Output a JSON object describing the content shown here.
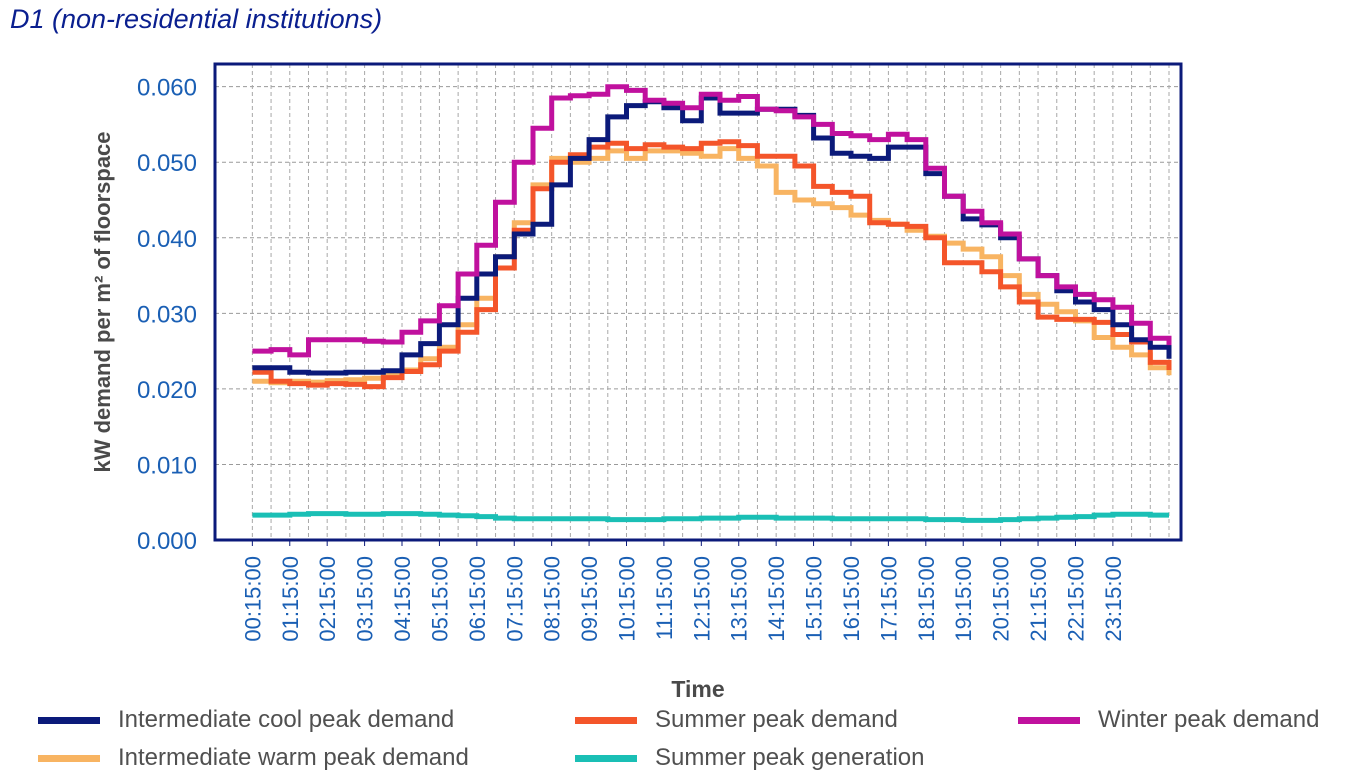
{
  "title": "D1 (non-residential institutions)",
  "chart_data": {
    "type": "line",
    "step": true,
    "xlabel": "Time",
    "ylabel": "kW demand per m² of floorspace",
    "ylim": [
      0,
      0.063
    ],
    "yticks": [
      "0.000",
      "0.010",
      "0.020",
      "0.030",
      "0.040",
      "0.050",
      "0.060"
    ],
    "ytick_values": [
      0,
      0.01,
      0.02,
      0.03,
      0.04,
      0.05,
      0.06
    ],
    "xtick_labels": [
      "00:15:00",
      "01:15:00",
      "02:15:00",
      "03:15:00",
      "04:15:00",
      "05:15:00",
      "06:15:00",
      "07:15:00",
      "08:15:00",
      "09:15:00",
      "10:15:00",
      "11:15:00",
      "12:15:00",
      "13:15:00",
      "14:15:00",
      "15:15:00",
      "16:15:00",
      "17:15:00",
      "18:15:00",
      "19:15:00",
      "20:15:00",
      "21:15:00",
      "22:15:00",
      "23:15:00"
    ],
    "x_start_hour": 0,
    "x_step_hours": 0.5,
    "grid": true,
    "legend_position": "bottom",
    "series": [
      {
        "name": "Intermediate cool peak demand",
        "color": "#0b1a7a",
        "values": [
          0.0228,
          0.0228,
          0.0222,
          0.0221,
          0.0221,
          0.0222,
          0.0222,
          0.0224,
          0.0245,
          0.026,
          0.0285,
          0.032,
          0.0352,
          0.0375,
          0.0405,
          0.0418,
          0.047,
          0.0505,
          0.053,
          0.056,
          0.0575,
          0.058,
          0.0572,
          0.0555,
          0.0585,
          0.0565,
          0.0565,
          0.057,
          0.057,
          0.0562,
          0.0532,
          0.0512,
          0.0508,
          0.0505,
          0.052,
          0.052,
          0.0485,
          0.0455,
          0.0425,
          0.0417,
          0.04,
          0.0372,
          0.035,
          0.033,
          0.0315,
          0.0305,
          0.0285,
          0.0265,
          0.0255,
          0.024
        ]
      },
      {
        "name": "Intermediate warm peak demand",
        "color": "#f8b462",
        "values": [
          0.021,
          0.0208,
          0.021,
          0.0209,
          0.0211,
          0.0212,
          0.0214,
          0.0218,
          0.0225,
          0.024,
          0.0255,
          0.0285,
          0.032,
          0.0375,
          0.042,
          0.047,
          0.0505,
          0.05,
          0.0505,
          0.0515,
          0.0505,
          0.0515,
          0.0515,
          0.0512,
          0.0508,
          0.0518,
          0.0505,
          0.0495,
          0.046,
          0.045,
          0.0445,
          0.044,
          0.043,
          0.0423,
          0.0418,
          0.041,
          0.0402,
          0.0393,
          0.0385,
          0.0375,
          0.035,
          0.0325,
          0.0312,
          0.0302,
          0.029,
          0.0268,
          0.0255,
          0.0245,
          0.0228,
          0.0218
        ]
      },
      {
        "name": "Summer peak demand",
        "color": "#f4552a",
        "values": [
          0.0222,
          0.021,
          0.0207,
          0.0205,
          0.0207,
          0.0206,
          0.0203,
          0.0215,
          0.0223,
          0.0232,
          0.025,
          0.0275,
          0.0305,
          0.036,
          0.041,
          0.0465,
          0.05,
          0.051,
          0.052,
          0.0525,
          0.0518,
          0.0523,
          0.052,
          0.0518,
          0.0525,
          0.0527,
          0.0522,
          0.0508,
          0.0508,
          0.0495,
          0.0468,
          0.046,
          0.0455,
          0.042,
          0.0418,
          0.0415,
          0.04,
          0.0367,
          0.0367,
          0.0355,
          0.0335,
          0.0315,
          0.0295,
          0.0292,
          0.0292,
          0.0288,
          0.0272,
          0.0262,
          0.0235,
          0.0225
        ]
      },
      {
        "name": "Winter peak demand",
        "color": "#c0119e",
        "values": [
          0.025,
          0.0252,
          0.0245,
          0.0265,
          0.0265,
          0.0265,
          0.0263,
          0.0262,
          0.0275,
          0.029,
          0.031,
          0.0352,
          0.039,
          0.0447,
          0.05,
          0.0545,
          0.0585,
          0.0588,
          0.059,
          0.06,
          0.0595,
          0.0582,
          0.0578,
          0.0572,
          0.059,
          0.0582,
          0.0587,
          0.057,
          0.0568,
          0.056,
          0.055,
          0.0538,
          0.0535,
          0.053,
          0.0537,
          0.053,
          0.0492,
          0.0455,
          0.0435,
          0.042,
          0.0405,
          0.0372,
          0.035,
          0.0335,
          0.0325,
          0.0318,
          0.0308,
          0.0287,
          0.0267,
          0.0258
        ]
      },
      {
        "name": "Summer peak generation",
        "color": "#1abfb5",
        "values": [
          0.0033,
          0.0033,
          0.0034,
          0.0035,
          0.0035,
          0.0034,
          0.0034,
          0.0035,
          0.0035,
          0.0034,
          0.0033,
          0.0032,
          0.0031,
          0.0029,
          0.0028,
          0.0028,
          0.0028,
          0.0028,
          0.0028,
          0.0027,
          0.0027,
          0.0027,
          0.0028,
          0.0028,
          0.0029,
          0.0029,
          0.003,
          0.003,
          0.0029,
          0.0029,
          0.0029,
          0.0028,
          0.0028,
          0.0028,
          0.0028,
          0.0028,
          0.0027,
          0.0027,
          0.0026,
          0.0026,
          0.0027,
          0.0028,
          0.0029,
          0.003,
          0.0031,
          0.0033,
          0.0034,
          0.0034,
          0.0033,
          0.0033
        ]
      }
    ]
  }
}
